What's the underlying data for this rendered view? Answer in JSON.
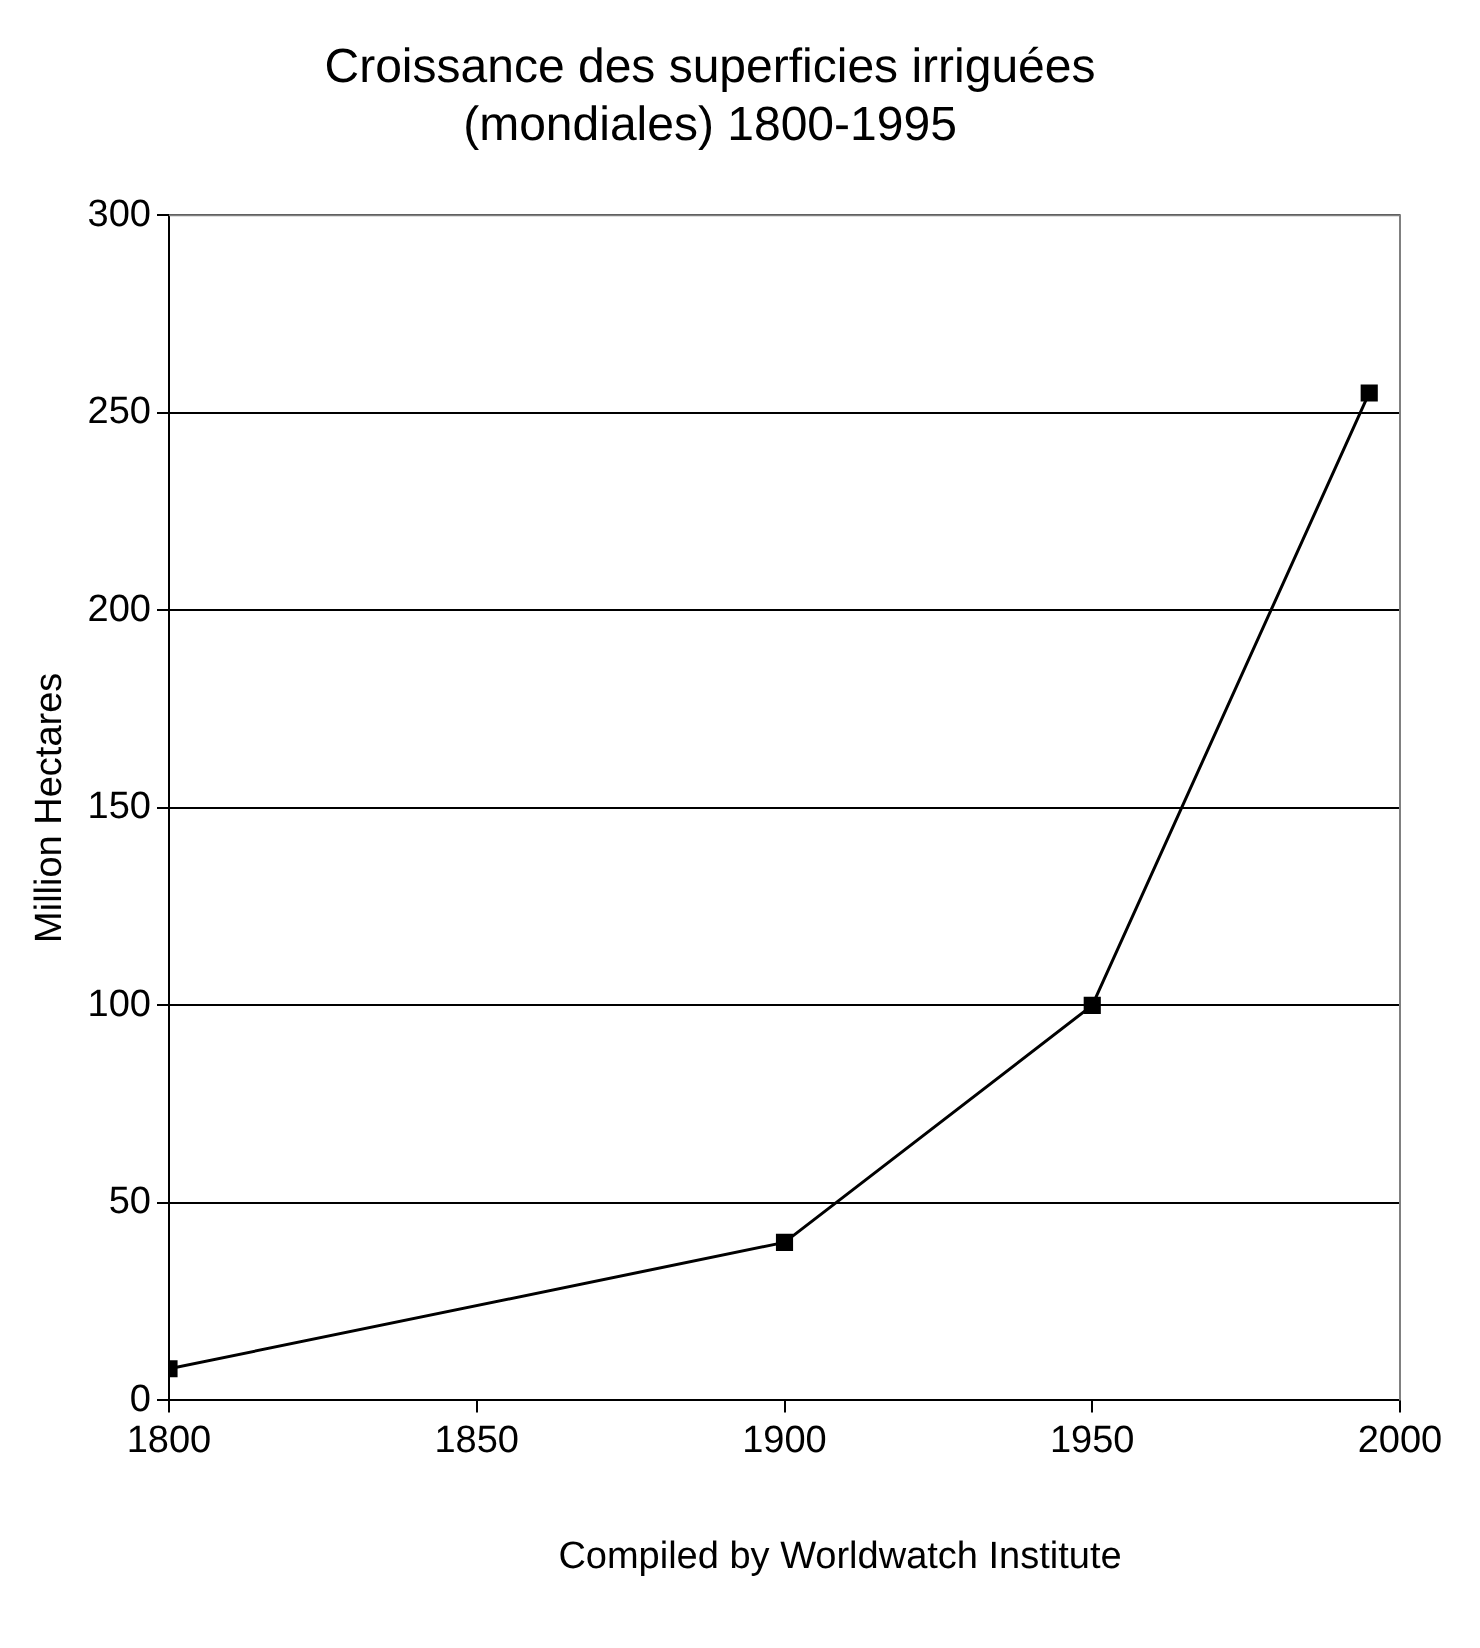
{
  "chart_data": {
    "type": "line",
    "title": "Croissance des superficies irriguées\n(mondiales) 1800-1995",
    "ylabel": "Million Hectares",
    "annotations": [
      "Compiled by Worldwatch Institute"
    ],
    "x": [
      1800,
      1900,
      1950,
      1995
    ],
    "series": [
      {
        "color": "#000000",
        "values": [
          8,
          40,
          100,
          255
        ]
      }
    ],
    "xlim": [
      1800,
      2000
    ],
    "xticks": [
      1800,
      1850,
      1900,
      1950,
      2000
    ],
    "ylim": [
      0,
      300
    ],
    "yticks": [
      0,
      50,
      100,
      150,
      200,
      250,
      300
    ],
    "grid": "y",
    "legend": false,
    "marker": "square",
    "line_style": "solid"
  }
}
